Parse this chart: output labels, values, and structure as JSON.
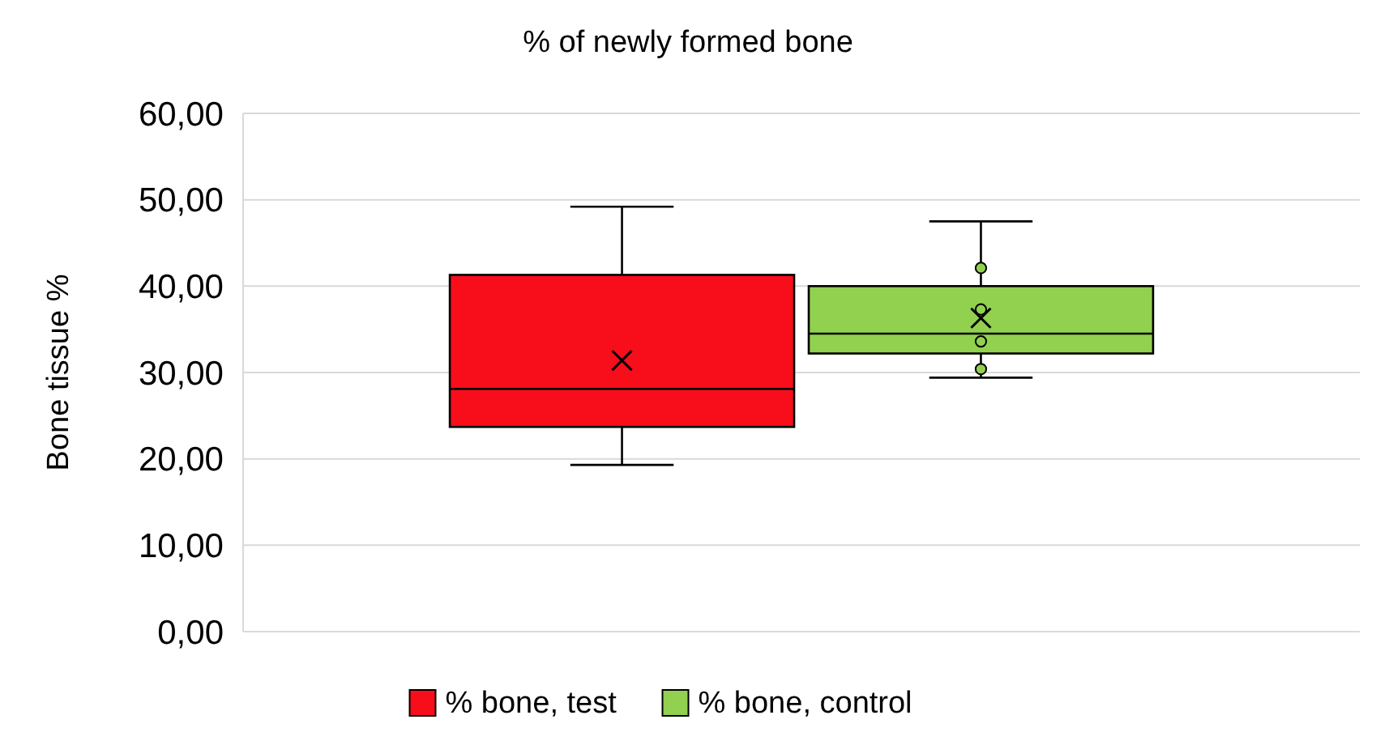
{
  "chart_data": {
    "type": "box",
    "title": "% of newly formed bone",
    "ylabel": "Bone tissue %",
    "categories": [
      null
    ],
    "ylim": [
      0,
      60
    ],
    "yticks": [
      {
        "value": 0,
        "label": "0,00"
      },
      {
        "value": 10,
        "label": "10,00"
      },
      {
        "value": 20,
        "label": "20,00"
      },
      {
        "value": 30,
        "label": "30,00"
      },
      {
        "value": 40,
        "label": "40,00"
      },
      {
        "value": 50,
        "label": "50,00"
      },
      {
        "value": 60,
        "label": "60,00"
      }
    ],
    "grid": "y",
    "legend": "bottom",
    "series": [
      {
        "name": "% bone, test",
        "color": "#f80d1b",
        "boxes": [
          {
            "low": 19.3,
            "q1": 23.7,
            "median": 28.1,
            "q3": 41.3,
            "high": 49.2,
            "mean": 31.4
          }
        ]
      },
      {
        "name": "% bone, control",
        "color": "#92d050",
        "boxes": [
          {
            "low": 29.4,
            "q1": 32.2,
            "median": 34.5,
            "q3": 40.0,
            "high": 47.5,
            "mean": 36.3,
            "outliers": [
              42.1,
              37.3,
              33.6,
              30.4
            ]
          }
        ]
      }
    ]
  }
}
